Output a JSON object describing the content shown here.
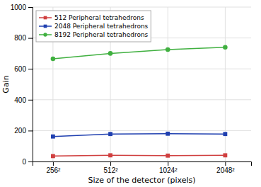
{
  "chart_data": {
    "type": "line",
    "x": [
      256,
      512,
      1024,
      2048
    ],
    "xlabel": "Size of the detector (pixels)",
    "ylabel": "Gain",
    "log": "x",
    "xlim": [
      200,
      2800
    ],
    "xticks": [
      {
        "value": 256,
        "label": "256²"
      },
      {
        "value": 512,
        "label": "512²"
      },
      {
        "value": 1024,
        "label": "1024²"
      },
      {
        "value": 2048,
        "label": "2048²"
      }
    ],
    "ylim": [
      0,
      1000
    ],
    "yticks": [
      0,
      200,
      400,
      600,
      800,
      1000
    ],
    "grid": true,
    "legend": "upper left",
    "series": [
      {
        "name": "512 Peripheral tetrahedrons",
        "color": "#d04040",
        "marker": "square",
        "values": [
          35,
          40,
          38,
          40
        ]
      },
      {
        "name": "2048 Peripheral tetrahedrons",
        "color": "#2040b0",
        "marker": "square",
        "values": [
          162,
          178,
          180,
          178
        ]
      },
      {
        "name": "8192 Peripheral tetrahedrons",
        "color": "#40b040",
        "marker": "circle",
        "values": [
          665,
          700,
          725,
          740
        ]
      }
    ]
  }
}
